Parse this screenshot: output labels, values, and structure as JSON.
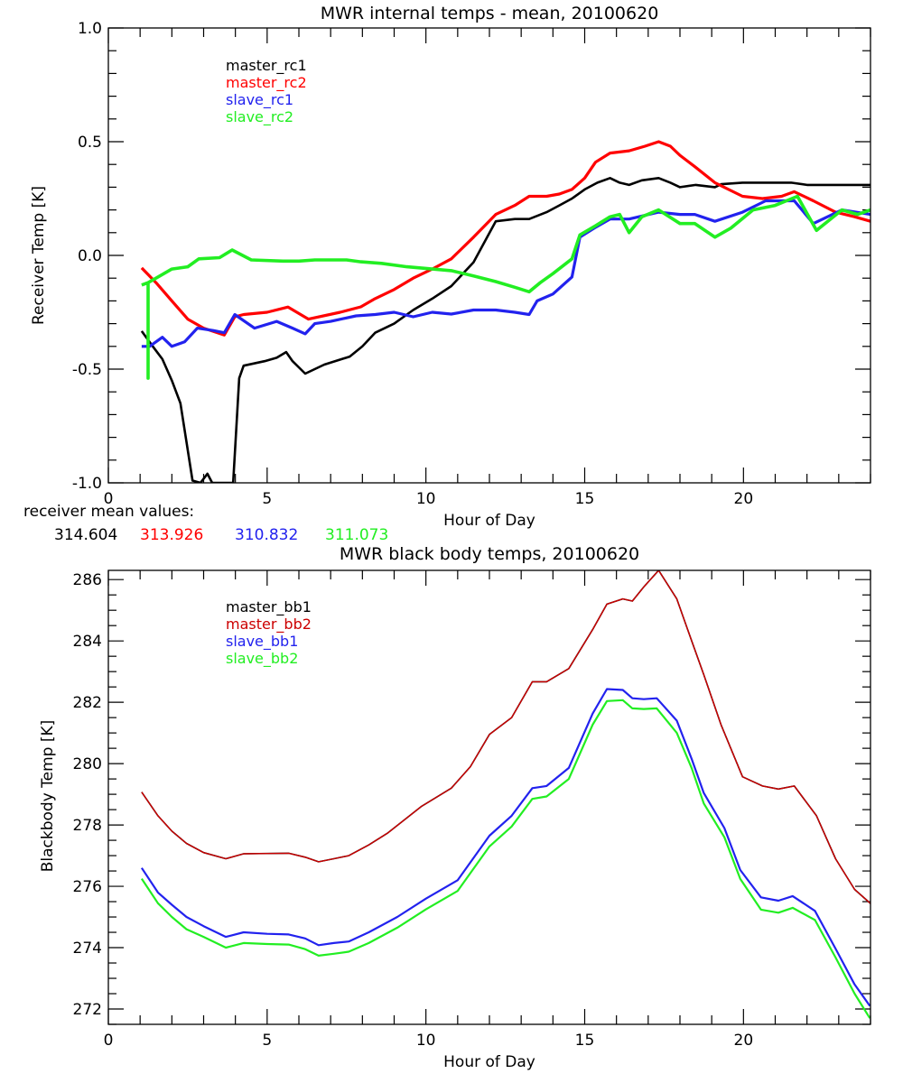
{
  "chart_data": [
    {
      "type": "line",
      "title": "MWR internal temps - mean, 20100620",
      "xlabel": "Hour of Day",
      "ylabel": "Receiver Temp [K]",
      "xlim": [
        0,
        24
      ],
      "ylim": [
        -1.0,
        1.0
      ],
      "xticks": [
        0,
        5,
        10,
        15,
        20
      ],
      "xtick_labels": [
        "0",
        "5",
        "10",
        "15",
        "20"
      ],
      "x_minor_step": 1,
      "yticks": [
        1.0,
        0.5,
        0.0,
        -0.5,
        -1.0
      ],
      "ytick_labels": [
        "1.0",
        "0.5",
        "0.0",
        "-0.5",
        "-1.0"
      ],
      "y_minor_step": 0.1,
      "grid": false,
      "legend_position": "top-left",
      "footnote": {
        "label": "receiver mean values:",
        "values": [
          {
            "text": "314.604",
            "color": "#000000"
          },
          {
            "text": "313.926",
            "color": "#ff0000"
          },
          {
            "text": "310.832",
            "color": "#2222ee"
          },
          {
            "text": "311.073",
            "color": "#22ee22"
          }
        ]
      },
      "series": [
        {
          "name": "master_rc1",
          "color": "#000000",
          "x": [
            1.05,
            1.4,
            1.7,
            2.0,
            2.27,
            2.46,
            2.65,
            2.9,
            3.12,
            3.27,
            3.6,
            3.93,
            4.12,
            4.26,
            4.92,
            5.3,
            5.6,
            5.8,
            6.2,
            6.8,
            7.6,
            8.0,
            8.4,
            9.0,
            9.6,
            10.2,
            10.8,
            11.5,
            12.2,
            12.8,
            13.25,
            13.8,
            14.2,
            14.6,
            15.0,
            15.4,
            15.8,
            16.1,
            16.4,
            16.8,
            17.33,
            17.7,
            18.0,
            18.5,
            19.1,
            19.3,
            19.97,
            20.6,
            21.5,
            22.0,
            23.0,
            24.0
          ],
          "y": [
            -0.333,
            -0.4,
            -0.456,
            -0.55,
            -0.65,
            -0.82,
            -0.99,
            -1.0,
            -0.96,
            -1.0,
            -1.0,
            -1.0,
            -0.54,
            -0.485,
            -0.465,
            -0.45,
            -0.425,
            -0.465,
            -0.52,
            -0.48,
            -0.445,
            -0.4,
            -0.34,
            -0.3,
            -0.24,
            -0.19,
            -0.135,
            -0.03,
            0.15,
            0.16,
            0.16,
            0.19,
            0.22,
            0.25,
            0.29,
            0.32,
            0.34,
            0.32,
            0.31,
            0.33,
            0.34,
            0.32,
            0.3,
            0.31,
            0.3,
            0.313,
            0.32,
            0.32,
            0.32,
            0.31,
            0.31,
            0.31
          ]
        },
        {
          "name": "master_rc2",
          "color": "#ff0000",
          "x": [
            1.05,
            1.5,
            2.0,
            2.5,
            3.0,
            3.65,
            3.98,
            4.26,
            5.0,
            5.66,
            6.3,
            7.3,
            7.95,
            8.4,
            9.0,
            9.6,
            10.2,
            10.8,
            11.5,
            12.2,
            12.8,
            13.25,
            13.8,
            14.2,
            14.6,
            15.0,
            15.34,
            15.8,
            16.4,
            16.9,
            17.33,
            17.7,
            18.0,
            18.47,
            19.1,
            19.97,
            20.6,
            21.2,
            21.6,
            22.2,
            22.9,
            23.5,
            24.0
          ],
          "y": [
            -0.055,
            -0.12,
            -0.2,
            -0.28,
            -0.32,
            -0.35,
            -0.27,
            -0.26,
            -0.25,
            -0.227,
            -0.28,
            -0.25,
            -0.226,
            -0.19,
            -0.15,
            -0.1,
            -0.06,
            -0.015,
            0.08,
            0.18,
            0.22,
            0.26,
            0.26,
            0.27,
            0.29,
            0.34,
            0.41,
            0.45,
            0.46,
            0.48,
            0.5,
            0.48,
            0.44,
            0.39,
            0.32,
            0.26,
            0.25,
            0.26,
            0.28,
            0.24,
            0.19,
            0.17,
            0.15
          ]
        },
        {
          "name": "slave_rc1",
          "color": "#2222ee",
          "x": [
            1.05,
            1.3,
            1.7,
            2.0,
            2.4,
            2.8,
            3.3,
            3.65,
            3.98,
            4.6,
            5.3,
            5.8,
            6.2,
            6.5,
            7.0,
            7.8,
            8.4,
            9.0,
            9.6,
            10.2,
            10.8,
            11.5,
            12.2,
            12.8,
            13.25,
            13.5,
            14.0,
            14.6,
            14.85,
            15.3,
            15.8,
            16.4,
            17.33,
            18.0,
            18.47,
            19.1,
            19.97,
            20.7,
            21.6,
            22.2,
            23.1,
            24.0
          ],
          "y": [
            -0.4,
            -0.4,
            -0.36,
            -0.4,
            -0.38,
            -0.32,
            -0.33,
            -0.34,
            -0.26,
            -0.32,
            -0.29,
            -0.32,
            -0.345,
            -0.3,
            -0.29,
            -0.266,
            -0.26,
            -0.25,
            -0.27,
            -0.25,
            -0.258,
            -0.24,
            -0.24,
            -0.25,
            -0.26,
            -0.2,
            -0.17,
            -0.095,
            0.08,
            0.12,
            0.16,
            0.16,
            0.19,
            0.18,
            0.18,
            0.15,
            0.19,
            0.24,
            0.24,
            0.14,
            0.2,
            0.18
          ]
        },
        {
          "name": "slave_rc2",
          "color": "#22ee22",
          "x": [
            1.05,
            1.25,
            1.25,
            1.25,
            1.5,
            2.0,
            2.5,
            2.85,
            3.5,
            3.9,
            4.5,
            5.5,
            6.0,
            6.5,
            7.5,
            7.95,
            8.6,
            9.4,
            10.2,
            10.8,
            11.5,
            12.2,
            12.8,
            13.25,
            13.6,
            14.0,
            14.6,
            14.85,
            15.34,
            15.8,
            16.1,
            16.4,
            16.8,
            17.33,
            18.0,
            18.47,
            19.1,
            19.6,
            20.3,
            21.0,
            21.7,
            22.3,
            23.1,
            23.6,
            24.0
          ],
          "y": [
            -0.13,
            -0.12,
            -0.54,
            -0.12,
            -0.1,
            -0.06,
            -0.05,
            -0.015,
            -0.01,
            0.024,
            -0.02,
            -0.025,
            -0.025,
            -0.02,
            -0.02,
            -0.028,
            -0.035,
            -0.05,
            -0.06,
            -0.067,
            -0.09,
            -0.115,
            -0.14,
            -0.16,
            -0.12,
            -0.08,
            -0.015,
            0.09,
            0.13,
            0.17,
            0.18,
            0.1,
            0.17,
            0.2,
            0.14,
            0.14,
            0.08,
            0.12,
            0.2,
            0.22,
            0.26,
            0.11,
            0.2,
            0.18,
            0.2
          ]
        }
      ]
    },
    {
      "type": "line",
      "title": "MWR black body temps, 20100620",
      "xlabel": "Hour of Day",
      "ylabel": "Blackbody Temp [K]",
      "xlim": [
        0,
        24
      ],
      "ylim": [
        271.5,
        286.3
      ],
      "xticks": [
        0,
        5,
        10,
        15,
        20
      ],
      "xtick_labels": [
        "0",
        "5",
        "10",
        "15",
        "20"
      ],
      "x_minor_step": 1,
      "yticks": [
        272,
        274,
        276,
        278,
        280,
        282,
        284,
        286
      ],
      "ytick_labels": [
        "272",
        "274",
        "276",
        "278",
        "280",
        "282",
        "284",
        "286"
      ],
      "y_minor_step": 0.5,
      "grid": false,
      "legend_position": "top-left",
      "series": [
        {
          "name": "master_bb1",
          "color": "#000000",
          "x": [
            1.05,
            1.56,
            2.0,
            2.46,
            3.0,
            3.7,
            4.26,
            5.0,
            5.68,
            6.2,
            6.62,
            7.1,
            7.57,
            8.2,
            8.8,
            9.85,
            10.8,
            11.4,
            12.0,
            12.7,
            13.35,
            13.8,
            14.5,
            15.25,
            15.7,
            16.2,
            16.5,
            16.86,
            17.33,
            17.9,
            18.37,
            18.75,
            19.3,
            19.97,
            20.6,
            21.1,
            21.6,
            22.3,
            22.9,
            23.5,
            24.0
          ],
          "y": [
            279.07,
            278.3,
            277.8,
            277.4,
            277.1,
            276.9,
            277.06,
            277.07,
            277.08,
            276.95,
            276.8,
            276.9,
            277.0,
            277.35,
            277.74,
            278.6,
            279.2,
            279.9,
            280.95,
            281.5,
            282.67,
            282.67,
            283.1,
            284.37,
            285.2,
            285.37,
            285.3,
            285.76,
            286.3,
            285.37,
            284.0,
            282.9,
            281.25,
            279.57,
            279.27,
            279.17,
            279.27,
            278.3,
            276.9,
            275.9,
            275.44
          ]
        },
        {
          "name": "master_bb2",
          "color": "#cc0000",
          "x": [
            1.05,
            1.56,
            2.0,
            2.46,
            3.0,
            3.7,
            4.26,
            5.0,
            5.68,
            6.2,
            6.62,
            7.1,
            7.57,
            8.2,
            8.8,
            9.85,
            10.8,
            11.4,
            12.0,
            12.7,
            13.35,
            13.8,
            14.5,
            15.25,
            15.7,
            16.2,
            16.5,
            16.86,
            17.33,
            17.9,
            18.37,
            18.75,
            19.3,
            19.97,
            20.6,
            21.1,
            21.6,
            22.3,
            22.9,
            23.5,
            24.0
          ],
          "y": [
            279.07,
            278.3,
            277.8,
            277.4,
            277.1,
            276.9,
            277.06,
            277.07,
            277.08,
            276.95,
            276.8,
            276.9,
            277.0,
            277.35,
            277.74,
            278.6,
            279.2,
            279.9,
            280.95,
            281.5,
            282.67,
            282.67,
            283.1,
            284.37,
            285.2,
            285.37,
            285.3,
            285.76,
            286.3,
            285.37,
            284.0,
            282.9,
            281.25,
            279.57,
            279.27,
            279.17,
            279.27,
            278.3,
            276.9,
            275.9,
            275.44
          ]
        },
        {
          "name": "slave_bb1",
          "color": "#2222ee",
          "x": [
            1.05,
            1.56,
            2.0,
            2.46,
            3.0,
            3.7,
            4.26,
            5.0,
            5.68,
            6.2,
            6.62,
            7.1,
            7.57,
            8.2,
            9.1,
            10.0,
            11.0,
            12.0,
            12.7,
            13.35,
            13.8,
            14.5,
            15.25,
            15.7,
            16.2,
            16.5,
            16.86,
            17.27,
            17.9,
            18.37,
            18.75,
            19.4,
            19.9,
            20.55,
            21.1,
            21.55,
            22.25,
            22.9,
            23.5,
            23.98
          ],
          "y": [
            276.6,
            275.8,
            275.4,
            275.0,
            274.7,
            274.35,
            274.5,
            274.45,
            274.43,
            274.3,
            274.08,
            274.15,
            274.2,
            274.5,
            275.0,
            275.6,
            276.2,
            277.65,
            278.3,
            279.2,
            279.27,
            279.86,
            281.63,
            282.43,
            282.4,
            282.13,
            282.1,
            282.13,
            281.4,
            280.15,
            279.04,
            277.9,
            276.53,
            275.64,
            275.53,
            275.68,
            275.2,
            273.97,
            272.8,
            272.1
          ]
        },
        {
          "name": "slave_bb2",
          "color": "#22ee22",
          "x": [
            1.05,
            1.56,
            2.0,
            2.46,
            3.0,
            3.7,
            4.26,
            5.0,
            5.68,
            6.2,
            6.62,
            7.1,
            7.57,
            8.2,
            9.1,
            10.0,
            11.0,
            12.0,
            12.7,
            13.35,
            13.8,
            14.5,
            15.25,
            15.7,
            16.2,
            16.5,
            16.86,
            17.27,
            17.9,
            18.37,
            18.75,
            19.4,
            19.9,
            20.55,
            21.1,
            21.55,
            22.25,
            22.9,
            23.5,
            23.98
          ],
          "y": [
            276.25,
            275.45,
            275.0,
            274.6,
            274.35,
            274.0,
            274.15,
            274.12,
            274.1,
            273.95,
            273.74,
            273.8,
            273.87,
            274.15,
            274.65,
            275.25,
            275.85,
            277.3,
            277.95,
            278.85,
            278.93,
            279.5,
            281.27,
            282.04,
            282.07,
            281.8,
            281.78,
            281.8,
            281.0,
            279.85,
            278.7,
            277.6,
            276.24,
            275.24,
            275.14,
            275.3,
            274.9,
            273.68,
            272.5,
            271.7
          ]
        }
      ]
    }
  ]
}
